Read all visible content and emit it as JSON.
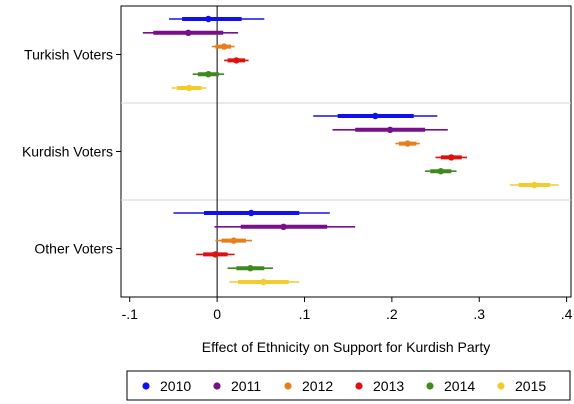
{
  "chart_data": {
    "type": "coefficient-plot",
    "xlabel": "Effect of Ethnicity on Support for Kurdish Party",
    "xlim": [
      -0.11,
      0.405
    ],
    "x_ticks": [
      -0.1,
      0,
      0.1,
      0.2,
      0.3,
      0.4
    ],
    "x_tick_labels": [
      "-.1",
      "0",
      ".1",
      ".2",
      ".3",
      ".4"
    ],
    "reference_line_x": 0,
    "groups": [
      "Turkish Voters",
      "Kurdish Voters",
      "Other Voters"
    ],
    "series": [
      {
        "name": "2010",
        "color": "#1010ee"
      },
      {
        "name": "2011",
        "color": "#7a0f8a"
      },
      {
        "name": "2012",
        "color": "#e87e1a"
      },
      {
        "name": "2013",
        "color": "#dd1111"
      },
      {
        "name": "2014",
        "color": "#3f8a1f"
      },
      {
        "name": "2015",
        "color": "#f2cc2a"
      }
    ],
    "estimates": [
      {
        "group": "Turkish Voters",
        "series": "2010",
        "est": -0.01,
        "ci90": [
          -0.04,
          0.028
        ],
        "ci95": [
          -0.055,
          0.054
        ]
      },
      {
        "group": "Turkish Voters",
        "series": "2011",
        "est": -0.033,
        "ci90": [
          -0.073,
          0.007
        ],
        "ci95": [
          -0.085,
          0.024
        ]
      },
      {
        "group": "Turkish Voters",
        "series": "2012",
        "est": 0.008,
        "ci90": [
          -0.002,
          0.016
        ],
        "ci95": [
          -0.006,
          0.02
        ]
      },
      {
        "group": "Turkish Voters",
        "series": "2013",
        "est": 0.022,
        "ci90": [
          0.012,
          0.032
        ],
        "ci95": [
          0.008,
          0.036
        ]
      },
      {
        "group": "Turkish Voters",
        "series": "2014",
        "est": -0.01,
        "ci90": [
          -0.022,
          0.002
        ],
        "ci95": [
          -0.028,
          0.008
        ]
      },
      {
        "group": "Turkish Voters",
        "series": "2015",
        "est": -0.032,
        "ci90": [
          -0.046,
          -0.018
        ],
        "ci95": [
          -0.052,
          -0.012
        ]
      },
      {
        "group": "Kurdish Voters",
        "series": "2010",
        "est": 0.181,
        "ci90": [
          0.138,
          0.225
        ],
        "ci95": [
          0.11,
          0.252
        ]
      },
      {
        "group": "Kurdish Voters",
        "series": "2011",
        "est": 0.198,
        "ci90": [
          0.158,
          0.238
        ],
        "ci95": [
          0.132,
          0.264
        ]
      },
      {
        "group": "Kurdish Voters",
        "series": "2012",
        "est": 0.218,
        "ci90": [
          0.208,
          0.228
        ],
        "ci95": [
          0.204,
          0.232
        ]
      },
      {
        "group": "Kurdish Voters",
        "series": "2013",
        "est": 0.268,
        "ci90": [
          0.256,
          0.28
        ],
        "ci95": [
          0.25,
          0.286
        ]
      },
      {
        "group": "Kurdish Voters",
        "series": "2014",
        "est": 0.256,
        "ci90": [
          0.244,
          0.268
        ],
        "ci95": [
          0.238,
          0.274
        ]
      },
      {
        "group": "Kurdish Voters",
        "series": "2015",
        "est": 0.363,
        "ci90": [
          0.345,
          0.381
        ],
        "ci95": [
          0.335,
          0.391
        ]
      },
      {
        "group": "Other Voters",
        "series": "2010",
        "est": 0.039,
        "ci90": [
          -0.015,
          0.094
        ],
        "ci95": [
          -0.05,
          0.129
        ]
      },
      {
        "group": "Other Voters",
        "series": "2011",
        "est": 0.076,
        "ci90": [
          0.027,
          0.126
        ],
        "ci95": [
          -0.003,
          0.158
        ]
      },
      {
        "group": "Other Voters",
        "series": "2012",
        "est": 0.019,
        "ci90": [
          0.005,
          0.033
        ],
        "ci95": [
          -0.002,
          0.04
        ]
      },
      {
        "group": "Other Voters",
        "series": "2013",
        "est": -0.002,
        "ci90": [
          -0.016,
          0.012
        ],
        "ci95": [
          -0.024,
          0.02
        ]
      },
      {
        "group": "Other Voters",
        "series": "2014",
        "est": 0.038,
        "ci90": [
          0.022,
          0.054
        ],
        "ci95": [
          0.012,
          0.064
        ]
      },
      {
        "group": "Other Voters",
        "series": "2015",
        "est": 0.053,
        "ci90": [
          0.024,
          0.082
        ],
        "ci95": [
          0.014,
          0.094
        ]
      }
    ],
    "grid": "horizontal separators between groups",
    "legend_position": "bottom"
  }
}
